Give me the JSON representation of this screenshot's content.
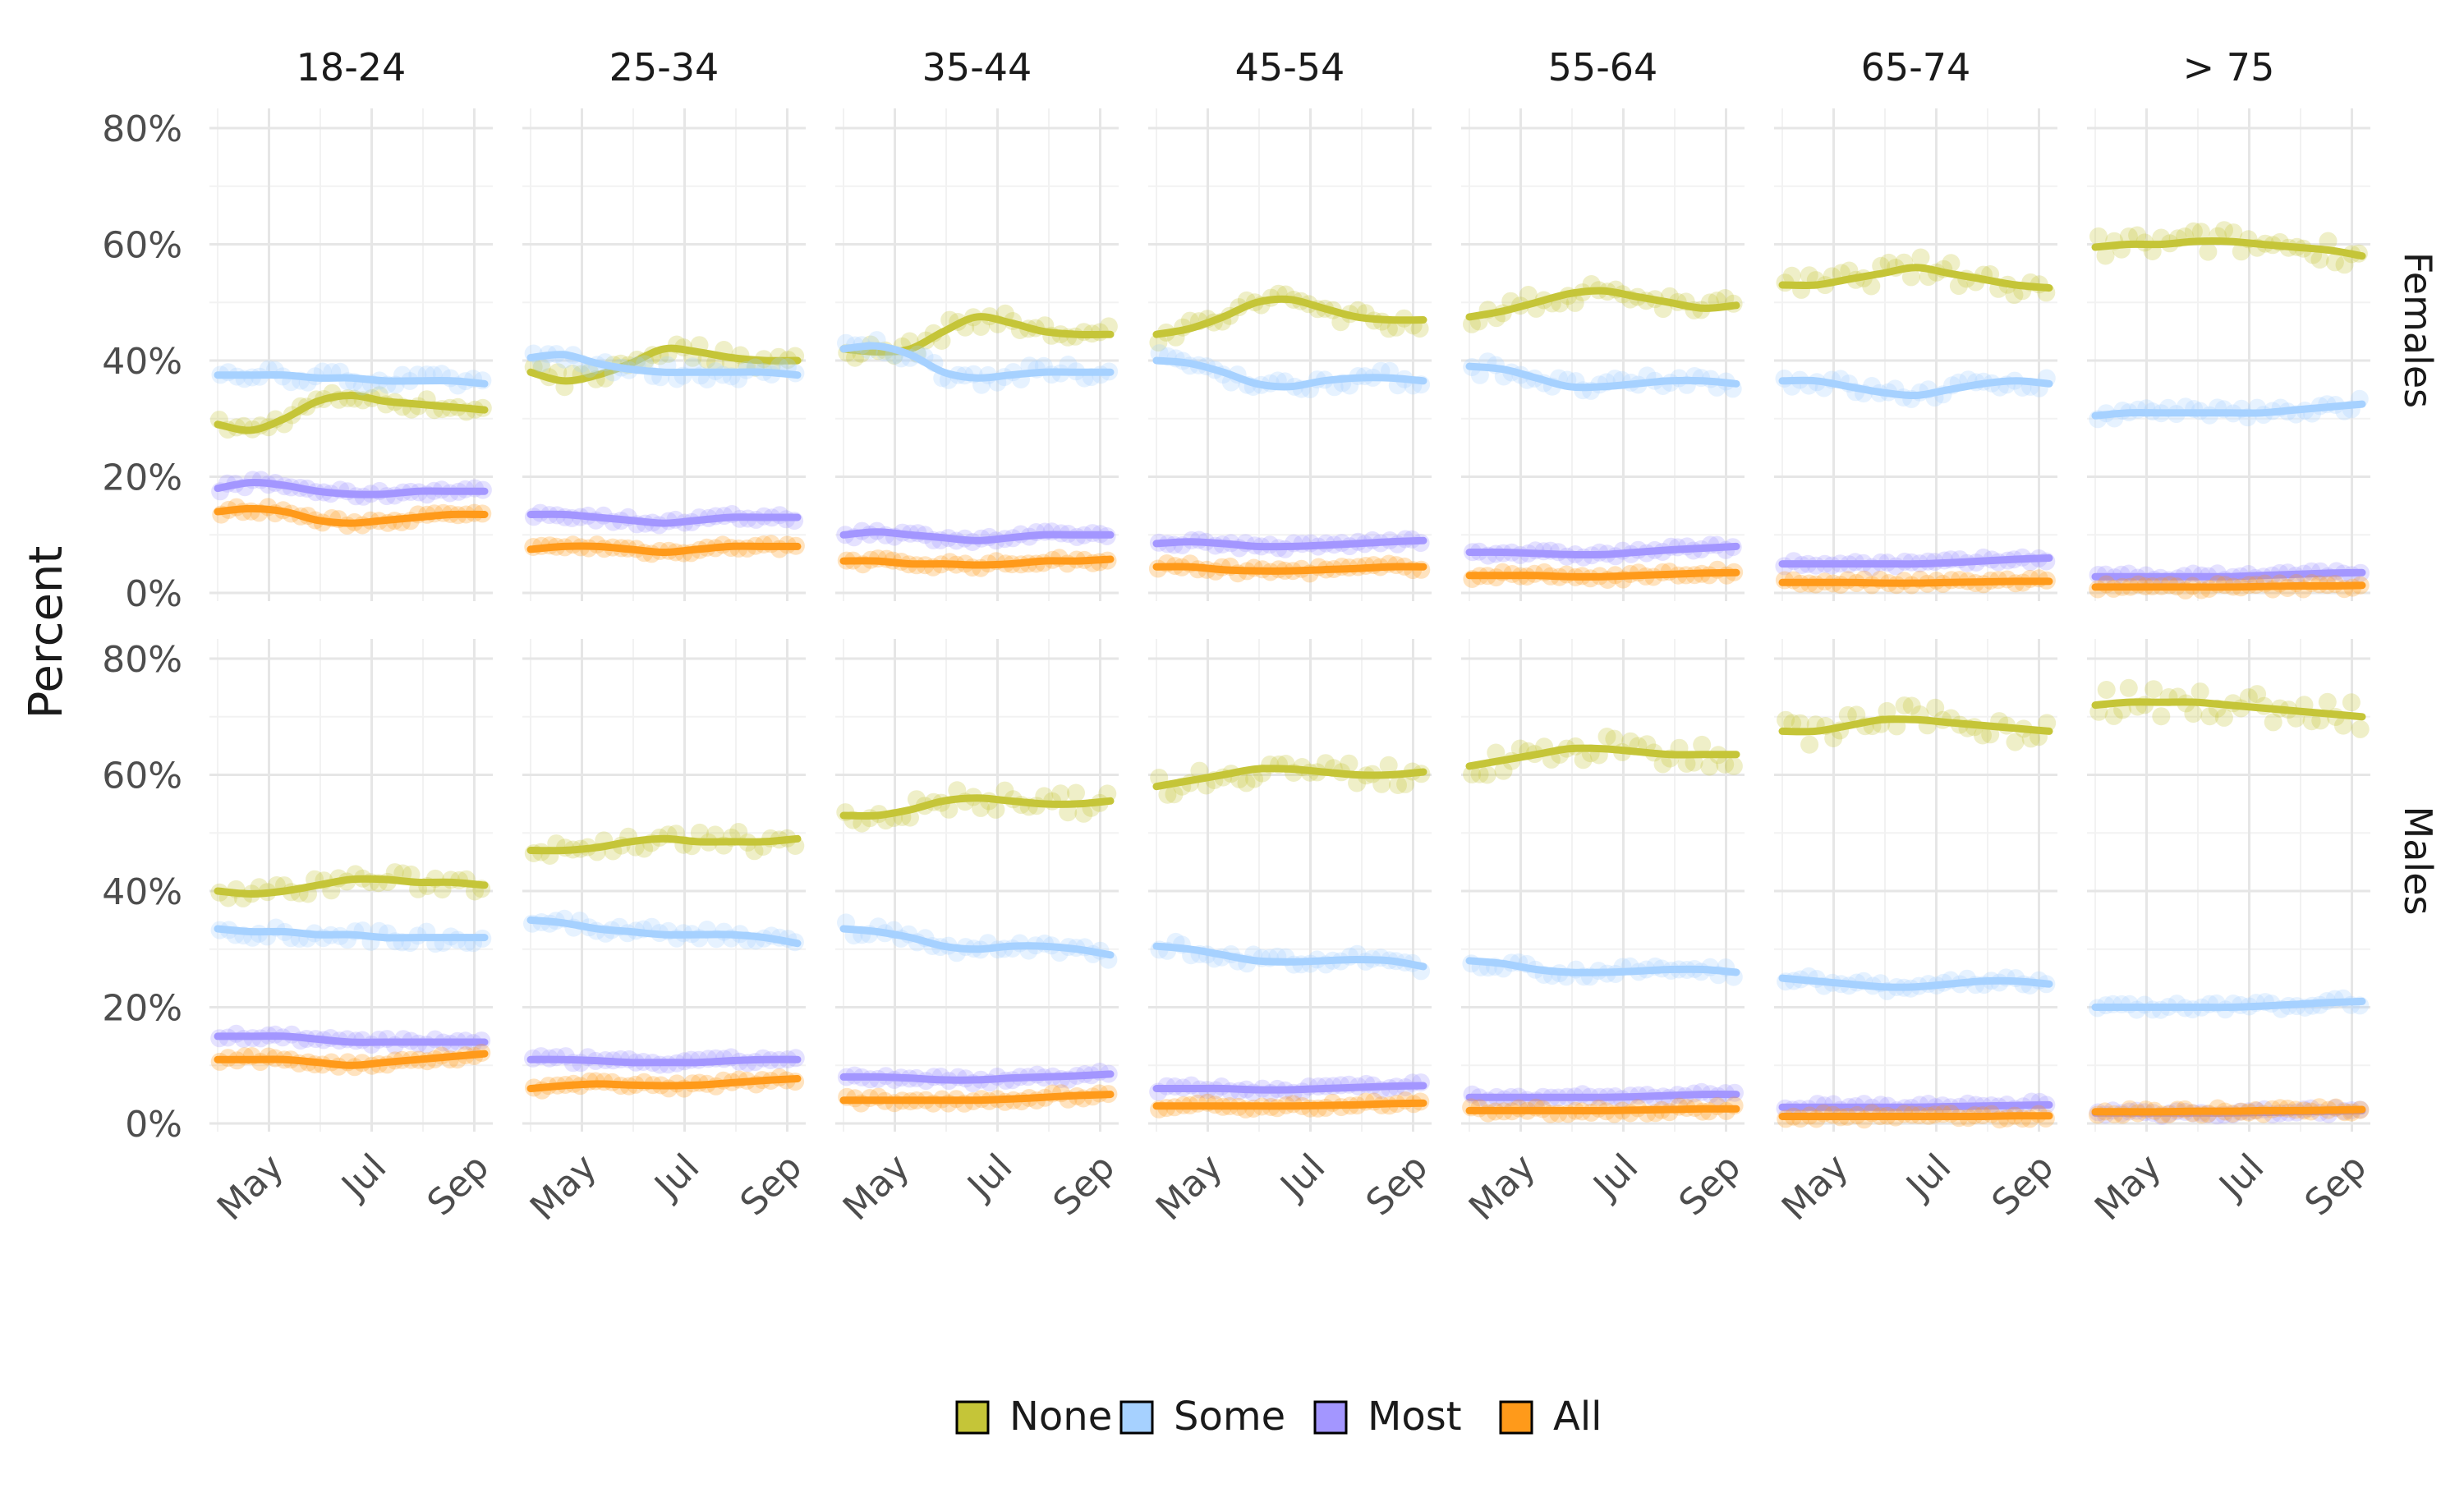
{
  "chart_data": {
    "type": "line",
    "subtype": "faceted smoothed line with scatter points",
    "ylabel": "Percent",
    "xlabel": "",
    "ylim": [
      0,
      0.8
    ],
    "y_ticks": [
      0,
      0.2,
      0.4,
      0.6,
      0.8
    ],
    "y_tick_labels": [
      "0%",
      "20%",
      "40%",
      "60%",
      "80%"
    ],
    "x_range_months": [
      4.0,
      9.2
    ],
    "x_ticks": [
      5,
      7,
      9
    ],
    "x_tick_labels": [
      "May",
      "Jul",
      "Sep"
    ],
    "x_label_note": "x values are month numbers (4 = mid-April, 9 = September)",
    "smooth_x": [
      4.0,
      4.65,
      5.3,
      5.95,
      6.6,
      7.25,
      7.9,
      8.55,
      9.2
    ],
    "columns": [
      "18-24",
      "25-34",
      "35-44",
      "45-54",
      "55-64",
      "65-74",
      "> 75"
    ],
    "rows": [
      "Females",
      "Males"
    ],
    "legend": {
      "position": "bottom",
      "entries": [
        {
          "key": "none",
          "label": "None",
          "color": "#C5C538"
        },
        {
          "key": "some",
          "label": "Some",
          "color": "#A6D1FF"
        },
        {
          "key": "most",
          "label": "Most",
          "color": "#A396FF"
        },
        {
          "key": "all",
          "label": "All",
          "color": "#FF9A1A"
        }
      ]
    },
    "panels": [
      {
        "row": "Females",
        "col": "18-24",
        "series": {
          "none": [
            0.29,
            0.28,
            0.3,
            0.33,
            0.34,
            0.33,
            0.325,
            0.32,
            0.315
          ],
          "some": [
            0.375,
            0.375,
            0.375,
            0.37,
            0.37,
            0.365,
            0.365,
            0.365,
            0.36
          ],
          "most": [
            0.18,
            0.19,
            0.185,
            0.175,
            0.17,
            0.17,
            0.175,
            0.175,
            0.175
          ],
          "all": [
            0.14,
            0.145,
            0.14,
            0.125,
            0.12,
            0.125,
            0.13,
            0.135,
            0.135
          ]
        }
      },
      {
        "row": "Females",
        "col": "25-34",
        "series": {
          "none": [
            0.38,
            0.365,
            0.375,
            0.395,
            0.42,
            0.415,
            0.405,
            0.4,
            0.4
          ],
          "some": [
            0.405,
            0.41,
            0.395,
            0.385,
            0.38,
            0.38,
            0.38,
            0.38,
            0.375
          ],
          "most": [
            0.135,
            0.135,
            0.13,
            0.125,
            0.12,
            0.125,
            0.13,
            0.13,
            0.13
          ],
          "all": [
            0.075,
            0.08,
            0.08,
            0.075,
            0.07,
            0.075,
            0.08,
            0.08,
            0.08
          ]
        }
      },
      {
        "row": "Females",
        "col": "35-44",
        "series": {
          "none": [
            0.42,
            0.415,
            0.42,
            0.45,
            0.475,
            0.465,
            0.45,
            0.445,
            0.445
          ],
          "some": [
            0.42,
            0.425,
            0.41,
            0.38,
            0.37,
            0.375,
            0.38,
            0.38,
            0.38
          ],
          "most": [
            0.1,
            0.105,
            0.1,
            0.095,
            0.09,
            0.095,
            0.1,
            0.1,
            0.1
          ],
          "all": [
            0.055,
            0.055,
            0.05,
            0.05,
            0.048,
            0.05,
            0.055,
            0.055,
            0.058
          ]
        }
      },
      {
        "row": "Females",
        "col": "45-54",
        "series": {
          "none": [
            0.445,
            0.455,
            0.475,
            0.5,
            0.505,
            0.49,
            0.475,
            0.47,
            0.47
          ],
          "some": [
            0.4,
            0.395,
            0.38,
            0.36,
            0.355,
            0.365,
            0.37,
            0.37,
            0.365
          ],
          "most": [
            0.085,
            0.088,
            0.085,
            0.08,
            0.08,
            0.082,
            0.085,
            0.088,
            0.09
          ],
          "all": [
            0.045,
            0.045,
            0.04,
            0.038,
            0.038,
            0.04,
            0.042,
            0.045,
            0.045
          ]
        }
      },
      {
        "row": "Females",
        "col": "55-64",
        "series": {
          "none": [
            0.475,
            0.485,
            0.5,
            0.515,
            0.52,
            0.51,
            0.5,
            0.49,
            0.495
          ],
          "some": [
            0.39,
            0.385,
            0.37,
            0.355,
            0.355,
            0.36,
            0.365,
            0.365,
            0.36
          ],
          "most": [
            0.07,
            0.07,
            0.068,
            0.066,
            0.066,
            0.07,
            0.074,
            0.077,
            0.08
          ],
          "all": [
            0.03,
            0.03,
            0.03,
            0.028,
            0.028,
            0.03,
            0.032,
            0.034,
            0.035
          ]
        }
      },
      {
        "row": "Females",
        "col": "65-74",
        "series": {
          "none": [
            0.53,
            0.53,
            0.54,
            0.55,
            0.56,
            0.55,
            0.54,
            0.53,
            0.525
          ],
          "some": [
            0.365,
            0.365,
            0.355,
            0.345,
            0.34,
            0.35,
            0.36,
            0.365,
            0.36
          ],
          "most": [
            0.05,
            0.05,
            0.05,
            0.05,
            0.05,
            0.052,
            0.055,
            0.058,
            0.06
          ],
          "all": [
            0.018,
            0.018,
            0.018,
            0.017,
            0.017,
            0.018,
            0.019,
            0.02,
            0.02
          ]
        }
      },
      {
        "row": "Females",
        "col": "> 75",
        "series": {
          "none": [
            0.595,
            0.6,
            0.6,
            0.605,
            0.605,
            0.6,
            0.595,
            0.59,
            0.58
          ],
          "some": [
            0.305,
            0.31,
            0.31,
            0.31,
            0.31,
            0.31,
            0.315,
            0.32,
            0.325
          ],
          "most": [
            0.028,
            0.028,
            0.028,
            0.028,
            0.028,
            0.03,
            0.032,
            0.034,
            0.035
          ],
          "all": [
            0.01,
            0.01,
            0.01,
            0.01,
            0.01,
            0.011,
            0.012,
            0.012,
            0.013
          ]
        }
      },
      {
        "row": "Males",
        "col": "18-24",
        "series": {
          "none": [
            0.4,
            0.395,
            0.4,
            0.41,
            0.42,
            0.42,
            0.415,
            0.415,
            0.41
          ],
          "some": [
            0.335,
            0.33,
            0.33,
            0.325,
            0.325,
            0.32,
            0.32,
            0.32,
            0.32
          ],
          "most": [
            0.15,
            0.15,
            0.15,
            0.145,
            0.14,
            0.14,
            0.14,
            0.14,
            0.14
          ],
          "all": [
            0.11,
            0.11,
            0.11,
            0.105,
            0.1,
            0.105,
            0.11,
            0.115,
            0.12
          ]
        }
      },
      {
        "row": "Males",
        "col": "25-34",
        "series": {
          "none": [
            0.47,
            0.47,
            0.475,
            0.485,
            0.49,
            0.485,
            0.485,
            0.485,
            0.49
          ],
          "some": [
            0.35,
            0.345,
            0.335,
            0.33,
            0.325,
            0.325,
            0.325,
            0.32,
            0.31
          ],
          "most": [
            0.11,
            0.11,
            0.108,
            0.105,
            0.105,
            0.105,
            0.108,
            0.11,
            0.11
          ],
          "all": [
            0.06,
            0.065,
            0.068,
            0.066,
            0.065,
            0.066,
            0.07,
            0.074,
            0.077
          ]
        }
      },
      {
        "row": "Males",
        "col": "35-44",
        "series": {
          "none": [
            0.53,
            0.53,
            0.54,
            0.555,
            0.56,
            0.555,
            0.55,
            0.55,
            0.555
          ],
          "some": [
            0.335,
            0.33,
            0.32,
            0.305,
            0.3,
            0.305,
            0.305,
            0.3,
            0.29
          ],
          "most": [
            0.08,
            0.08,
            0.078,
            0.075,
            0.075,
            0.078,
            0.08,
            0.082,
            0.085
          ],
          "all": [
            0.04,
            0.04,
            0.04,
            0.04,
            0.04,
            0.042,
            0.045,
            0.048,
            0.05
          ]
        }
      },
      {
        "row": "Males",
        "col": "45-54",
        "series": {
          "none": [
            0.58,
            0.59,
            0.6,
            0.61,
            0.61,
            0.605,
            0.6,
            0.6,
            0.605
          ],
          "some": [
            0.305,
            0.3,
            0.29,
            0.28,
            0.278,
            0.28,
            0.282,
            0.28,
            0.27
          ],
          "most": [
            0.06,
            0.06,
            0.06,
            0.058,
            0.058,
            0.06,
            0.062,
            0.064,
            0.065
          ],
          "all": [
            0.03,
            0.03,
            0.03,
            0.03,
            0.03,
            0.031,
            0.032,
            0.034,
            0.035
          ]
        }
      },
      {
        "row": "Males",
        "col": "55-64",
        "series": {
          "none": [
            0.615,
            0.625,
            0.635,
            0.645,
            0.645,
            0.64,
            0.635,
            0.635,
            0.635
          ],
          "some": [
            0.28,
            0.275,
            0.265,
            0.26,
            0.26,
            0.262,
            0.265,
            0.265,
            0.26
          ],
          "most": [
            0.045,
            0.045,
            0.045,
            0.045,
            0.045,
            0.046,
            0.048,
            0.05,
            0.05
          ],
          "all": [
            0.022,
            0.022,
            0.022,
            0.022,
            0.022,
            0.023,
            0.024,
            0.025,
            0.025
          ]
        }
      },
      {
        "row": "Males",
        "col": "65-74",
        "series": {
          "none": [
            0.675,
            0.675,
            0.685,
            0.695,
            0.695,
            0.69,
            0.685,
            0.68,
            0.675
          ],
          "some": [
            0.25,
            0.245,
            0.24,
            0.235,
            0.235,
            0.24,
            0.245,
            0.245,
            0.24
          ],
          "most": [
            0.028,
            0.028,
            0.028,
            0.028,
            0.028,
            0.029,
            0.03,
            0.031,
            0.032
          ],
          "all": [
            0.012,
            0.012,
            0.012,
            0.012,
            0.012,
            0.012,
            0.012,
            0.013,
            0.013
          ]
        }
      },
      {
        "row": "Males",
        "col": "> 75",
        "series": {
          "none": [
            0.72,
            0.725,
            0.725,
            0.725,
            0.72,
            0.715,
            0.71,
            0.705,
            0.7
          ],
          "some": [
            0.2,
            0.2,
            0.2,
            0.2,
            0.2,
            0.202,
            0.205,
            0.208,
            0.21
          ],
          "most": [
            0.018,
            0.018,
            0.018,
            0.018,
            0.018,
            0.019,
            0.02,
            0.021,
            0.022
          ],
          "all": [
            0.02,
            0.02,
            0.02,
            0.021,
            0.021,
            0.022,
            0.022,
            0.023,
            0.024
          ]
        }
      }
    ]
  }
}
